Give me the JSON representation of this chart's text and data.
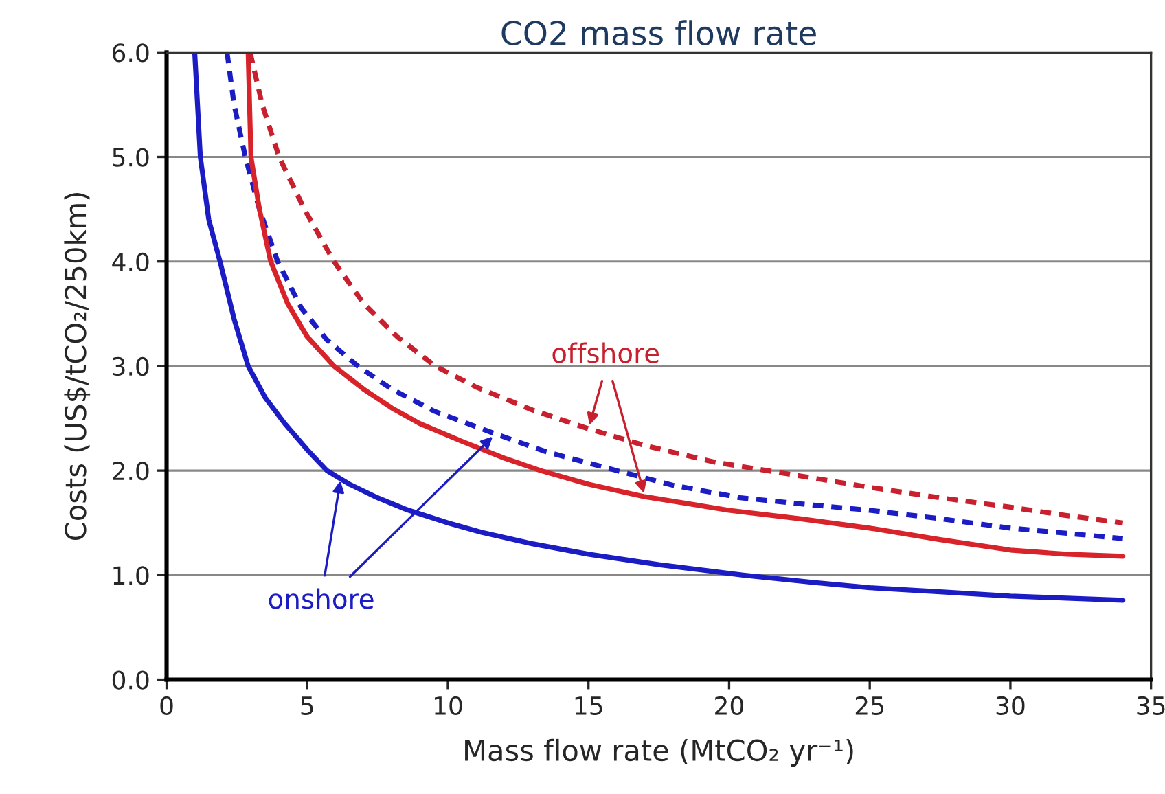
{
  "chart_data": {
    "type": "line",
    "title": "CO2 mass flow rate",
    "xlabel": "Mass flow rate (MtCO₂ yr⁻¹)",
    "ylabel": "Costs (US$/tCO₂/250km)",
    "series": [
      {
        "color": "#1c1cc4",
        "line_style": "solid",
        "x": [
          1.0,
          1.1,
          1.2,
          1.5,
          1.9,
          2.4,
          2.9,
          3.5,
          4.2,
          5.0,
          5.7,
          6.5,
          7.5,
          8.5,
          10.0,
          11.2,
          13.0,
          15.0,
          17.5,
          20.5,
          23.0,
          25.0,
          27.5,
          30.0,
          32.0,
          34.0
        ],
        "values": [
          6.0,
          5.5,
          5.0,
          4.4,
          4.0,
          3.45,
          3.0,
          2.7,
          2.45,
          2.2,
          2.0,
          1.87,
          1.74,
          1.63,
          1.5,
          1.41,
          1.3,
          1.2,
          1.1,
          1.0,
          0.93,
          0.88,
          0.84,
          0.8,
          0.78,
          0.76
        ]
      },
      {
        "color": "#1c1cc4",
        "line_style": "dashed",
        "x": [
          2.15,
          2.4,
          2.8,
          3.3,
          3.95,
          4.8,
          5.7,
          6.8,
          8.0,
          9.5,
          11.7,
          13.5,
          16.0,
          18.0,
          20.4,
          23.0,
          25.0,
          27.5,
          30.0,
          32.0,
          34.0
        ],
        "values": [
          6.0,
          5.5,
          5.0,
          4.5,
          4.0,
          3.55,
          3.25,
          3.0,
          2.78,
          2.57,
          2.35,
          2.18,
          2.0,
          1.86,
          1.74,
          1.67,
          1.62,
          1.54,
          1.45,
          1.4,
          1.35
        ]
      },
      {
        "color": "#d9232a",
        "line_style": "solid",
        "x": [
          2.9,
          2.95,
          3.0,
          3.3,
          3.7,
          4.3,
          5.0,
          5.95,
          7.0,
          8.0,
          9.0,
          10.5,
          12.0,
          13.3,
          15.0,
          17.0,
          20.0,
          22.5,
          25.0,
          27.5,
          30.0,
          32.0,
          34.0
        ],
        "values": [
          6.0,
          5.5,
          5.0,
          4.5,
          4.0,
          3.6,
          3.28,
          3.0,
          2.78,
          2.6,
          2.45,
          2.28,
          2.12,
          2.0,
          1.87,
          1.75,
          1.62,
          1.54,
          1.45,
          1.34,
          1.24,
          1.2,
          1.18
        ]
      },
      {
        "color": "#c8202e",
        "line_style": "dashed",
        "x": [
          2.97,
          3.4,
          4.0,
          4.9,
          5.95,
          7.0,
          8.2,
          9.55,
          11.0,
          13.0,
          15.0,
          17.0,
          19.5,
          22.5,
          25.0,
          27.5,
          30.0,
          32.0,
          34.0
        ],
        "values": [
          6.0,
          5.5,
          5.0,
          4.5,
          4.0,
          3.6,
          3.28,
          3.0,
          2.8,
          2.58,
          2.4,
          2.24,
          2.08,
          1.95,
          1.84,
          1.74,
          1.65,
          1.57,
          1.5
        ]
      }
    ],
    "annotations": [
      {
        "text": "offshore",
        "x": 15.0,
        "y": 2.4
      },
      {
        "text": "onshore",
        "x": 6.2,
        "y": 1.94
      }
    ],
    "xlim": [
      0,
      35
    ],
    "xticks": [
      0,
      5,
      10,
      15,
      20,
      25,
      30,
      35
    ],
    "ylim": [
      0,
      6
    ],
    "yticks": [
      {
        "value": 0,
        "label": "0.0"
      },
      {
        "value": 1,
        "label": "1.0"
      },
      {
        "value": 2,
        "label": "2.0"
      },
      {
        "value": 3,
        "label": "3.0"
      },
      {
        "value": 4,
        "label": "4.0"
      },
      {
        "value": 5,
        "label": "5.0"
      },
      {
        "value": 6,
        "label": "6.0"
      }
    ],
    "grid": "y",
    "legend": false
  }
}
